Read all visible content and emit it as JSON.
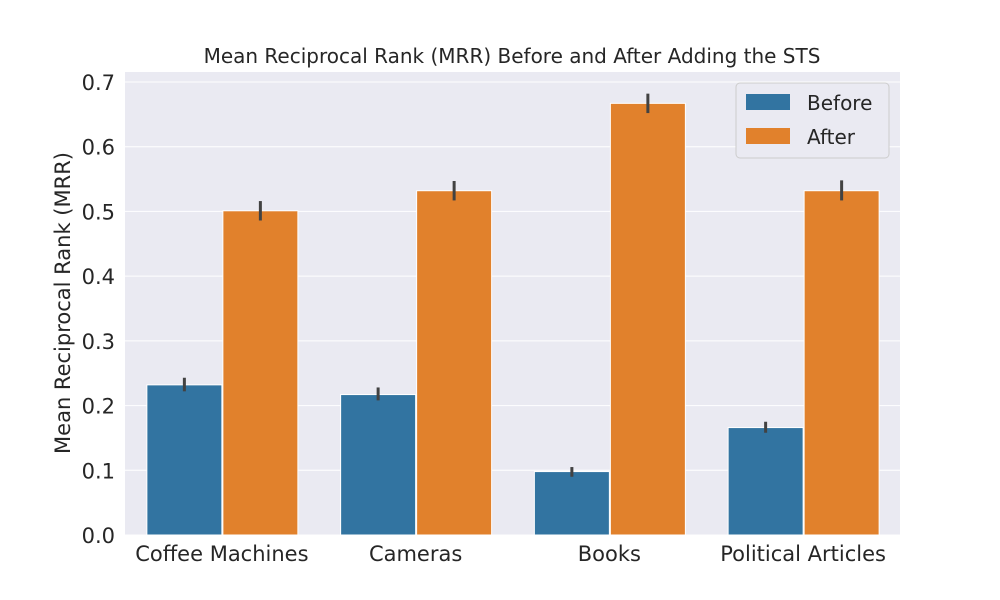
{
  "chart_data": {
    "type": "bar",
    "title": "Mean Reciprocal Rank (MRR) Before and After Adding the STS",
    "xlabel": "",
    "ylabel": "Mean Reciprocal Rank (MRR)",
    "categories": [
      "Coffee Machines",
      "Cameras",
      "Books",
      "Political Articles"
    ],
    "series": [
      {
        "name": "Before",
        "color": "#3274a1",
        "values": [
          0.232,
          0.217,
          0.098,
          0.166
        ],
        "err_low": [
          0.222,
          0.208,
          0.09,
          0.158
        ],
        "err_high": [
          0.243,
          0.228,
          0.105,
          0.175
        ]
      },
      {
        "name": "After",
        "color": "#e1812c",
        "values": [
          0.501,
          0.532,
          0.667,
          0.532
        ],
        "err_low": [
          0.486,
          0.517,
          0.652,
          0.517
        ],
        "err_high": [
          0.516,
          0.547,
          0.682,
          0.548
        ]
      }
    ],
    "ylim": [
      0,
      0.7
    ],
    "yticks": [
      "0.0",
      "0.1",
      "0.2",
      "0.3",
      "0.4",
      "0.5",
      "0.6",
      "0.7"
    ],
    "grid": true,
    "legend_position": "top-right",
    "background_color": "#eaeaf2",
    "error_bar_color": "#424242"
  }
}
